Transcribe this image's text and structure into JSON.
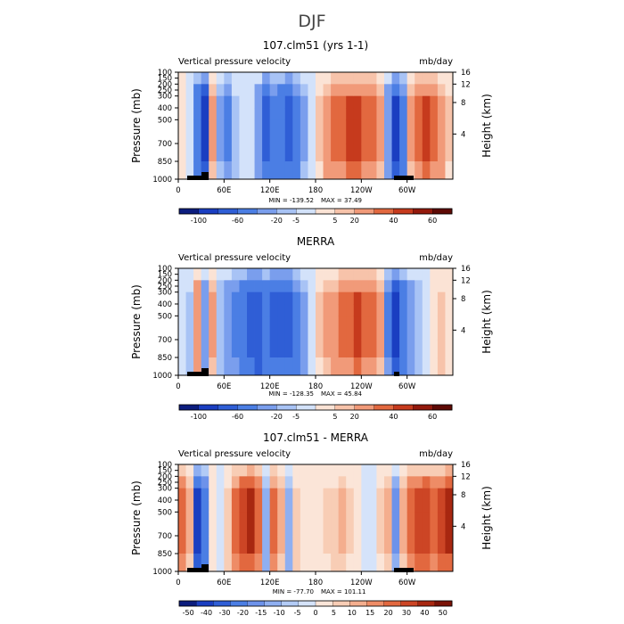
{
  "page_title": "DJF",
  "palettes": {
    "std": [
      "#0c1d7e",
      "#1a3ec1",
      "#2f5ed6",
      "#4b7ee4",
      "#7a9eed",
      "#a8c3f5",
      "#d3e2fa",
      "#fbe3d5",
      "#f7c3aa",
      "#f19a79",
      "#e2683f",
      "#c63a1d",
      "#93190c",
      "#5e0a05"
    ],
    "diff": [
      "#0c1d7e",
      "#1a3ec1",
      "#2f5ed6",
      "#4b7ee4",
      "#6d92ea",
      "#8faff1",
      "#b2cbf6",
      "#d5e3fa",
      "#fbe5d8",
      "#f8cdb5",
      "#f4ae8e",
      "#ee8c66",
      "#e2683f",
      "#cc4525",
      "#a82710",
      "#7a1206"
    ]
  },
  "chart_data": [
    {
      "type": "heatmap",
      "title": "107.clm51 (yrs 1-1)",
      "variable": "Vertical pressure velocity",
      "units": "mb/day",
      "xlabel": "",
      "ylabel": "Pressure (mb)",
      "y2label": "Height (km)",
      "x_ticks": [
        "0",
        "60E",
        "120E",
        "180",
        "120W",
        "60W"
      ],
      "x_tick_lon": [
        0,
        60,
        120,
        180,
        240,
        300
      ],
      "xlim": [
        0,
        360
      ],
      "y_ticks": [
        "100",
        "150",
        "200",
        "250",
        "300",
        "400",
        "500",
        "700",
        "850",
        "1000"
      ],
      "y_tick_p": [
        100,
        150,
        200,
        250,
        300,
        400,
        500,
        700,
        850,
        1000
      ],
      "ylim": [
        100,
        1000
      ],
      "y2_ticks": [
        "16",
        "12",
        "8",
        "4"
      ],
      "min_label": "MIN = -139.52",
      "max_label": "MAX =  37.49",
      "colorbar_labels": [
        "-100",
        "-60",
        "-20",
        "-5",
        "5",
        "20",
        "40",
        "60"
      ],
      "palette": "std",
      "columns": [
        {
          "lon": 0,
          "v": 2
        },
        {
          "lon": 10,
          "v": -4
        },
        {
          "lon": 20,
          "v": -40
        },
        {
          "lon": 30,
          "v": -70
        },
        {
          "lon": 40,
          "v": 12
        },
        {
          "lon": 50,
          "v": -12
        },
        {
          "lon": 60,
          "v": -25
        },
        {
          "lon": 70,
          "v": -8
        },
        {
          "lon": 80,
          "v": -4
        },
        {
          "lon": 90,
          "v": -3
        },
        {
          "lon": 100,
          "v": -18
        },
        {
          "lon": 110,
          "v": -45
        },
        {
          "lon": 120,
          "v": -30
        },
        {
          "lon": 130,
          "v": -35
        },
        {
          "lon": 140,
          "v": -50
        },
        {
          "lon": 150,
          "v": -30
        },
        {
          "lon": 160,
          "v": -12
        },
        {
          "lon": 170,
          "v": -3
        },
        {
          "lon": 180,
          "v": 6
        },
        {
          "lon": 190,
          "v": 15
        },
        {
          "lon": 200,
          "v": 22
        },
        {
          "lon": 210,
          "v": 28
        },
        {
          "lon": 220,
          "v": 32
        },
        {
          "lon": 230,
          "v": 30
        },
        {
          "lon": 240,
          "v": 25
        },
        {
          "lon": 250,
          "v": 20
        },
        {
          "lon": 260,
          "v": 14
        },
        {
          "lon": 270,
          "v": -20
        },
        {
          "lon": 280,
          "v": -65
        },
        {
          "lon": 290,
          "v": -30
        },
        {
          "lon": 300,
          "v": 10
        },
        {
          "lon": 310,
          "v": 22
        },
        {
          "lon": 320,
          "v": 32
        },
        {
          "lon": 330,
          "v": 25
        },
        {
          "lon": 340,
          "v": 15
        },
        {
          "lon": 350,
          "v": 6
        }
      ]
    },
    {
      "type": "heatmap",
      "title": "MERRA",
      "variable": "Vertical pressure velocity",
      "units": "mb/day",
      "xlabel": "",
      "ylabel": "Pressure (mb)",
      "y2label": "Height (km)",
      "x_ticks": [
        "0",
        "60E",
        "120E",
        "180",
        "120W",
        "60W"
      ],
      "x_tick_lon": [
        0,
        60,
        120,
        180,
        240,
        300
      ],
      "xlim": [
        0,
        360
      ],
      "y_ticks": [
        "100",
        "150",
        "200",
        "250",
        "300",
        "400",
        "500",
        "700",
        "850",
        "1000"
      ],
      "y_tick_p": [
        100,
        150,
        200,
        250,
        300,
        400,
        500,
        700,
        850,
        1000
      ],
      "ylim": [
        100,
        1000
      ],
      "y2_ticks": [
        "16",
        "12",
        "8",
        "4"
      ],
      "min_label": "MIN = -128.35",
      "max_label": "MAX =  45.84",
      "colorbar_labels": [
        "-100",
        "-60",
        "-20",
        "-5",
        "5",
        "20",
        "40",
        "60"
      ],
      "palette": "std",
      "columns": [
        {
          "lon": 0,
          "v": -4
        },
        {
          "lon": 10,
          "v": -8
        },
        {
          "lon": 20,
          "v": 18
        },
        {
          "lon": 30,
          "v": -20
        },
        {
          "lon": 40,
          "v": 12
        },
        {
          "lon": 50,
          "v": -10
        },
        {
          "lon": 60,
          "v": -20
        },
        {
          "lon": 70,
          "v": -28
        },
        {
          "lon": 80,
          "v": -35
        },
        {
          "lon": 90,
          "v": -45
        },
        {
          "lon": 100,
          "v": -60
        },
        {
          "lon": 110,
          "v": -40
        },
        {
          "lon": 120,
          "v": -55
        },
        {
          "lon": 130,
          "v": -42
        },
        {
          "lon": 140,
          "v": -48
        },
        {
          "lon": 150,
          "v": -30
        },
        {
          "lon": 160,
          "v": -15
        },
        {
          "lon": 170,
          "v": -4
        },
        {
          "lon": 180,
          "v": 6
        },
        {
          "lon": 190,
          "v": 12
        },
        {
          "lon": 200,
          "v": 15
        },
        {
          "lon": 210,
          "v": 20
        },
        {
          "lon": 220,
          "v": 26
        },
        {
          "lon": 230,
          "v": 30
        },
        {
          "lon": 240,
          "v": 26
        },
        {
          "lon": 250,
          "v": 22
        },
        {
          "lon": 260,
          "v": 12
        },
        {
          "lon": 270,
          "v": -25
        },
        {
          "lon": 280,
          "v": -70
        },
        {
          "lon": 290,
          "v": -40
        },
        {
          "lon": 300,
          "v": -20
        },
        {
          "lon": 310,
          "v": -10
        },
        {
          "lon": 320,
          "v": -4
        },
        {
          "lon": 330,
          "v": 4
        },
        {
          "lon": 340,
          "v": 8
        },
        {
          "lon": 350,
          "v": 2
        }
      ]
    },
    {
      "type": "heatmap",
      "title": "107.clm51 - MERRA",
      "variable": "Vertical pressure velocity",
      "units": "mb/day",
      "xlabel": "",
      "ylabel": "Pressure (mb)",
      "y2label": "Height (km)",
      "x_ticks": [
        "0",
        "60E",
        "120E",
        "180",
        "120W",
        "60W"
      ],
      "x_tick_lon": [
        0,
        60,
        120,
        180,
        240,
        300
      ],
      "xlim": [
        0,
        360
      ],
      "y_ticks": [
        "100",
        "150",
        "200",
        "250",
        "300",
        "400",
        "500",
        "700",
        "850",
        "1000"
      ],
      "y_tick_p": [
        100,
        150,
        200,
        250,
        300,
        400,
        500,
        700,
        850,
        1000
      ],
      "ylim": [
        100,
        1000
      ],
      "y2_ticks": [
        "16",
        "12",
        "8",
        "4"
      ],
      "min_label": "MIN = -77.70",
      "max_label": "MAX = 101.11",
      "colorbar_labels": [
        "-50",
        "-40",
        "-30",
        "-20",
        "-15",
        "-10",
        "-5",
        "0",
        "5",
        "10",
        "15",
        "20",
        "30",
        "40",
        "50"
      ],
      "palette": "diff",
      "columns": [
        {
          "lon": 0,
          "v": 25
        },
        {
          "lon": 10,
          "v": 12
        },
        {
          "lon": 20,
          "v": -45
        },
        {
          "lon": 30,
          "v": -30
        },
        {
          "lon": 40,
          "v": 4
        },
        {
          "lon": 50,
          "v": -5
        },
        {
          "lon": 60,
          "v": 8
        },
        {
          "lon": 70,
          "v": 22
        },
        {
          "lon": 80,
          "v": 35
        },
        {
          "lon": 90,
          "v": 40
        },
        {
          "lon": 100,
          "v": 25
        },
        {
          "lon": 110,
          "v": -15
        },
        {
          "lon": 120,
          "v": 22
        },
        {
          "lon": 130,
          "v": 10
        },
        {
          "lon": 140,
          "v": -15
        },
        {
          "lon": 150,
          "v": 8
        },
        {
          "lon": 160,
          "v": 4
        },
        {
          "lon": 170,
          "v": 2
        },
        {
          "lon": 180,
          "v": 2
        },
        {
          "lon": 190,
          "v": 6
        },
        {
          "lon": 200,
          "v": 8
        },
        {
          "lon": 210,
          "v": 10
        },
        {
          "lon": 220,
          "v": 6
        },
        {
          "lon": 230,
          "v": 2
        },
        {
          "lon": 240,
          "v": -4
        },
        {
          "lon": 250,
          "v": -2
        },
        {
          "lon": 260,
          "v": 5
        },
        {
          "lon": 270,
          "v": 10
        },
        {
          "lon": 280,
          "v": -20
        },
        {
          "lon": 290,
          "v": 12
        },
        {
          "lon": 300,
          "v": 25
        },
        {
          "lon": 310,
          "v": 30
        },
        {
          "lon": 320,
          "v": 36
        },
        {
          "lon": 330,
          "v": 25
        },
        {
          "lon": 340,
          "v": 32
        },
        {
          "lon": 350,
          "v": 40
        }
      ]
    }
  ]
}
